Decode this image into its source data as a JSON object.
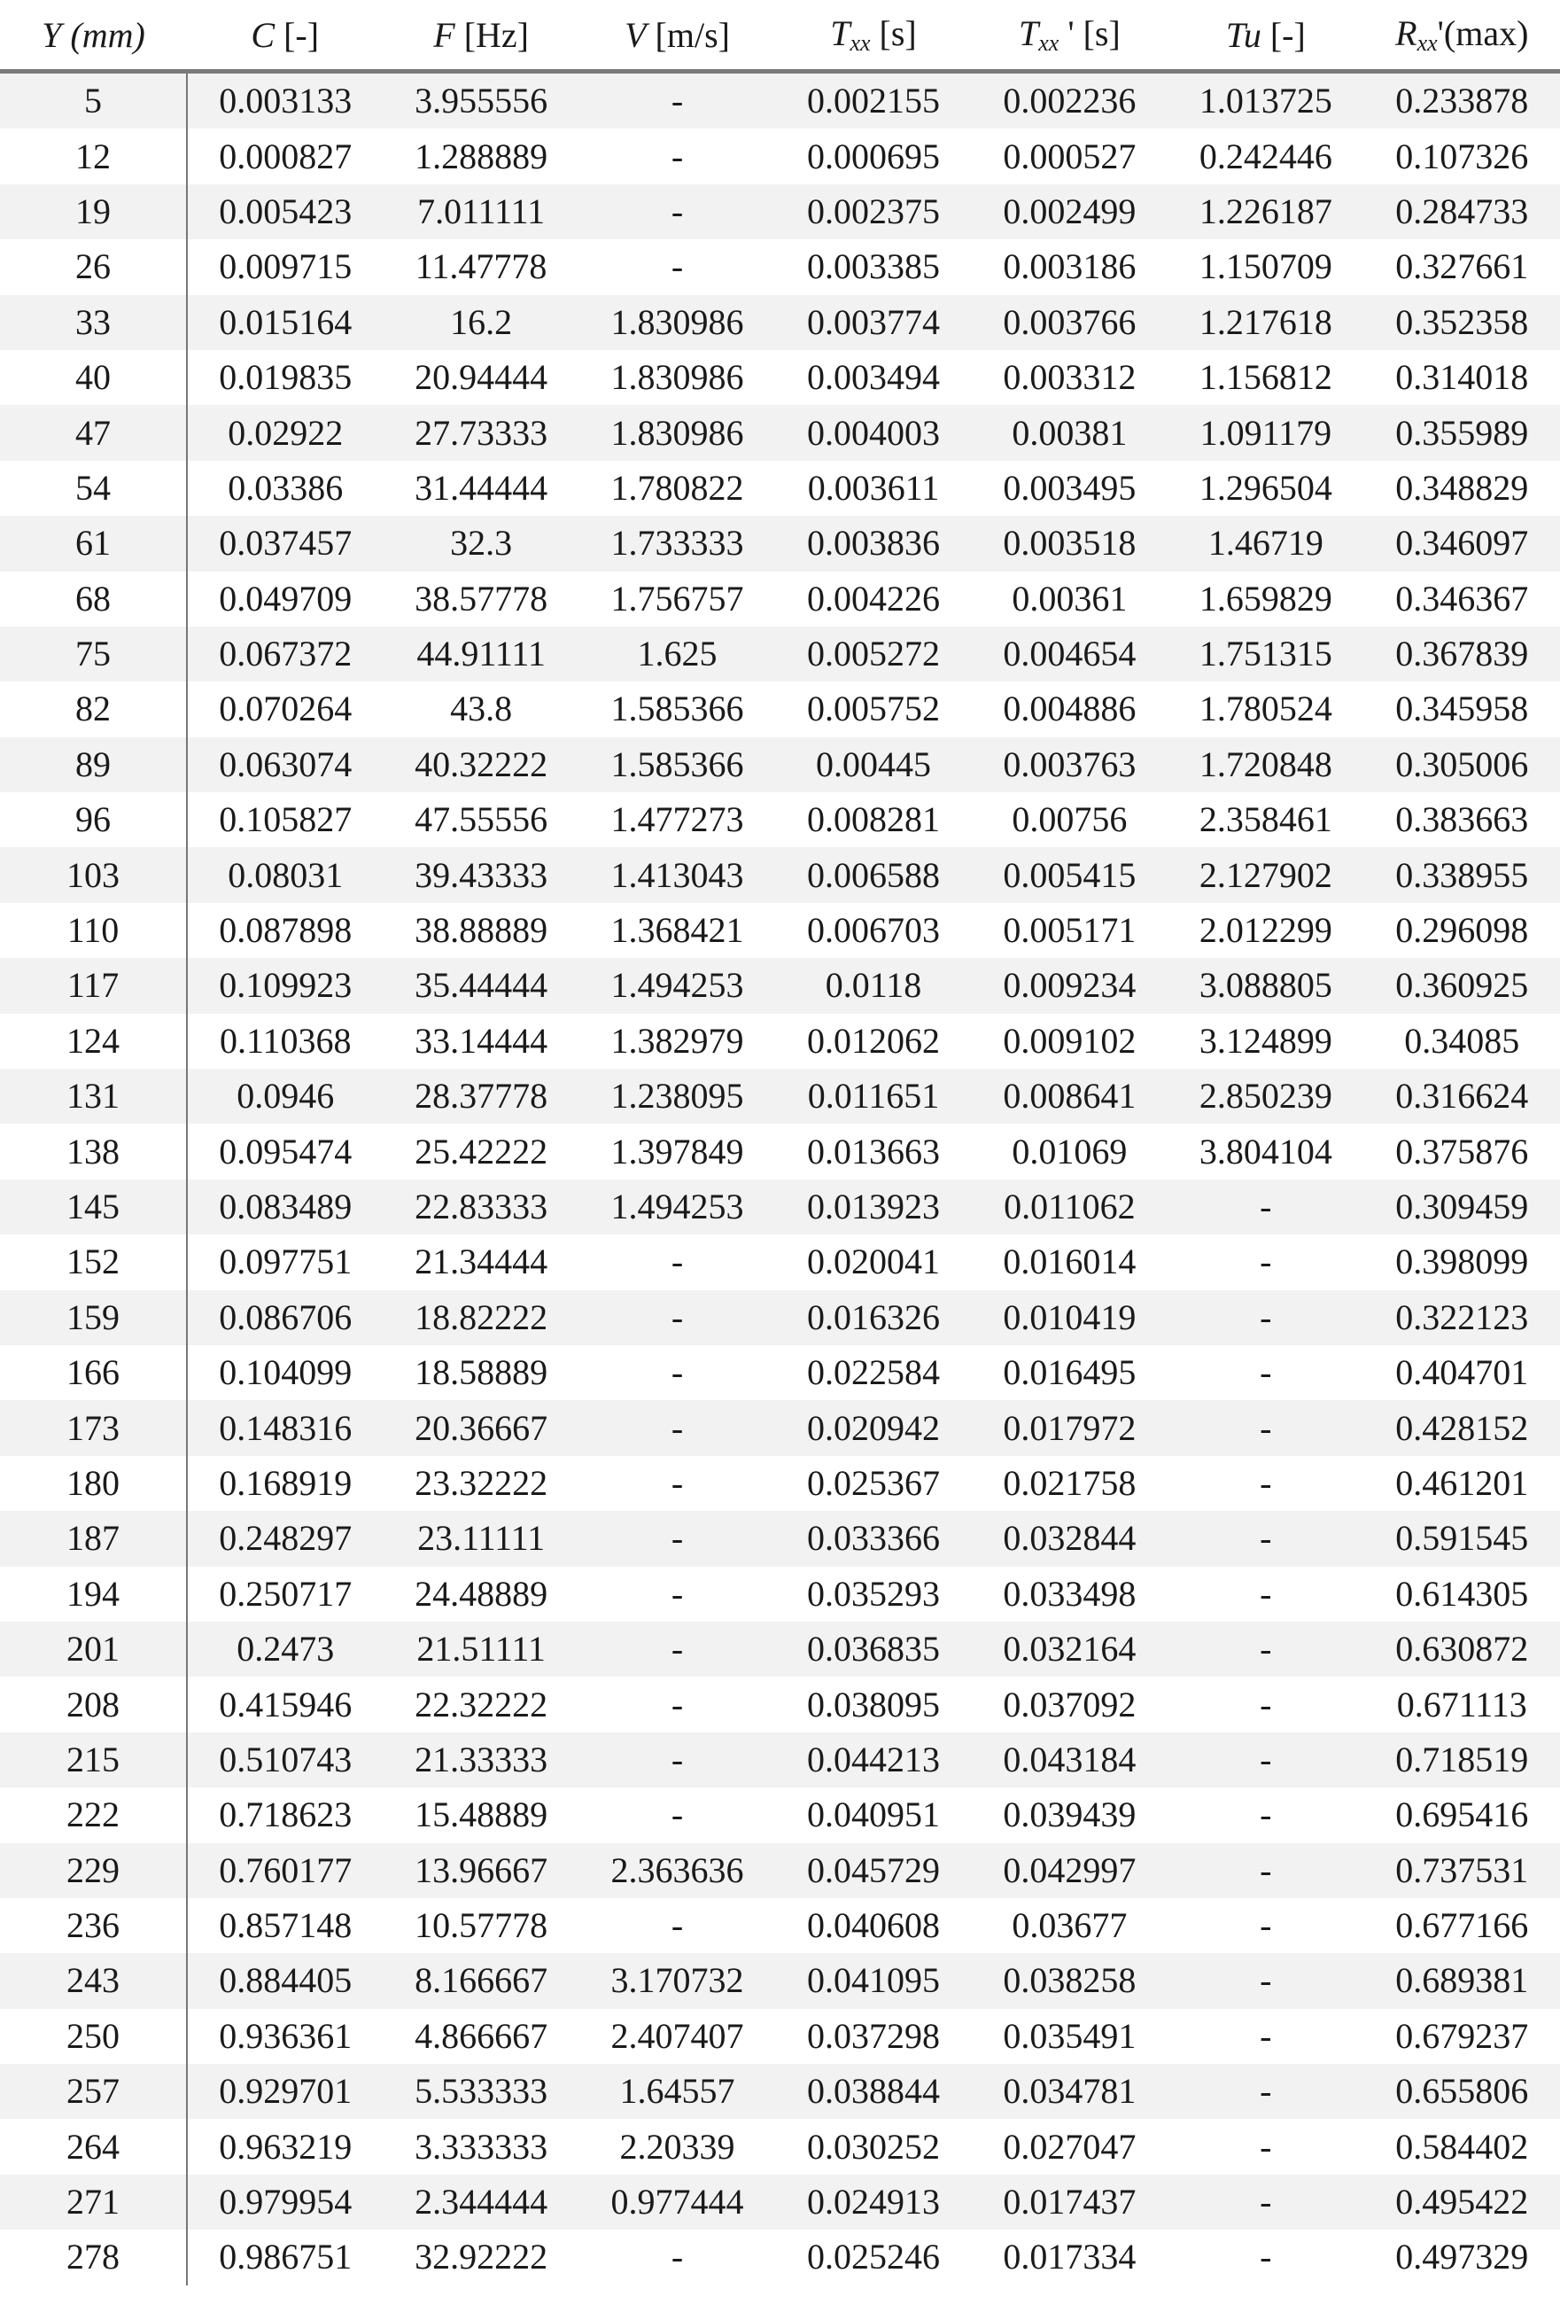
{
  "headers": [
    {
      "sym": "Y",
      "unit": " (mm)",
      "italic_unit": true
    },
    {
      "sym": "C",
      "unit": " [-]"
    },
    {
      "sym": "F",
      "unit": " [Hz]"
    },
    {
      "sym": "V",
      "unit": " [m/s]"
    },
    {
      "sym": "T",
      "sub": "xx",
      "unit": " [s]"
    },
    {
      "sym": "T",
      "sub": "xx",
      "unit": " ' [s]"
    },
    {
      "sym": "Tu",
      "unit": " [-]"
    },
    {
      "sym": "R",
      "sub": "xx",
      "unit": "'(max)"
    }
  ],
  "stripe_color": "#f2f2f2",
  "rows": [
    [
      "5",
      "0.003133",
      "3.955556",
      "-",
      "0.002155",
      "0.002236",
      "1.013725",
      "0.233878"
    ],
    [
      "12",
      "0.000827",
      "1.288889",
      "-",
      "0.000695",
      "0.000527",
      "0.242446",
      "0.107326"
    ],
    [
      "19",
      "0.005423",
      "7.011111",
      "-",
      "0.002375",
      "0.002499",
      "1.226187",
      "0.284733"
    ],
    [
      "26",
      "0.009715",
      "11.47778",
      "-",
      "0.003385",
      "0.003186",
      "1.150709",
      "0.327661"
    ],
    [
      "33",
      "0.015164",
      "16.2",
      "1.830986",
      "0.003774",
      "0.003766",
      "1.217618",
      "0.352358"
    ],
    [
      "40",
      "0.019835",
      "20.94444",
      "1.830986",
      "0.003494",
      "0.003312",
      "1.156812",
      "0.314018"
    ],
    [
      "47",
      "0.02922",
      "27.73333",
      "1.830986",
      "0.004003",
      "0.00381",
      "1.091179",
      "0.355989"
    ],
    [
      "54",
      "0.03386",
      "31.44444",
      "1.780822",
      "0.003611",
      "0.003495",
      "1.296504",
      "0.348829"
    ],
    [
      "61",
      "0.037457",
      "32.3",
      "1.733333",
      "0.003836",
      "0.003518",
      "1.46719",
      "0.346097"
    ],
    [
      "68",
      "0.049709",
      "38.57778",
      "1.756757",
      "0.004226",
      "0.00361",
      "1.659829",
      "0.346367"
    ],
    [
      "75",
      "0.067372",
      "44.91111",
      "1.625",
      "0.005272",
      "0.004654",
      "1.751315",
      "0.367839"
    ],
    [
      "82",
      "0.070264",
      "43.8",
      "1.585366",
      "0.005752",
      "0.004886",
      "1.780524",
      "0.345958"
    ],
    [
      "89",
      "0.063074",
      "40.32222",
      "1.585366",
      "0.00445",
      "0.003763",
      "1.720848",
      "0.305006"
    ],
    [
      "96",
      "0.105827",
      "47.55556",
      "1.477273",
      "0.008281",
      "0.00756",
      "2.358461",
      "0.383663"
    ],
    [
      "103",
      "0.08031",
      "39.43333",
      "1.413043",
      "0.006588",
      "0.005415",
      "2.127902",
      "0.338955"
    ],
    [
      "110",
      "0.087898",
      "38.88889",
      "1.368421",
      "0.006703",
      "0.005171",
      "2.012299",
      "0.296098"
    ],
    [
      "117",
      "0.109923",
      "35.44444",
      "1.494253",
      "0.0118",
      "0.009234",
      "3.088805",
      "0.360925"
    ],
    [
      "124",
      "0.110368",
      "33.14444",
      "1.382979",
      "0.012062",
      "0.009102",
      "3.124899",
      "0.34085"
    ],
    [
      "131",
      "0.0946",
      "28.37778",
      "1.238095",
      "0.011651",
      "0.008641",
      "2.850239",
      "0.316624"
    ],
    [
      "138",
      "0.095474",
      "25.42222",
      "1.397849",
      "0.013663",
      "0.01069",
      "3.804104",
      "0.375876"
    ],
    [
      "145",
      "0.083489",
      "22.83333",
      "1.494253",
      "0.013923",
      "0.011062",
      "-",
      "0.309459"
    ],
    [
      "152",
      "0.097751",
      "21.34444",
      "-",
      "0.020041",
      "0.016014",
      "-",
      "0.398099"
    ],
    [
      "159",
      "0.086706",
      "18.82222",
      "-",
      "0.016326",
      "0.010419",
      "-",
      "0.322123"
    ],
    [
      "166",
      "0.104099",
      "18.58889",
      "-",
      "0.022584",
      "0.016495",
      "-",
      "0.404701"
    ],
    [
      "173",
      "0.148316",
      "20.36667",
      "-",
      "0.020942",
      "0.017972",
      "-",
      "0.428152"
    ],
    [
      "180",
      "0.168919",
      "23.32222",
      "-",
      "0.025367",
      "0.021758",
      "-",
      "0.461201"
    ],
    [
      "187",
      "0.248297",
      "23.11111",
      "-",
      "0.033366",
      "0.032844",
      "-",
      "0.591545"
    ],
    [
      "194",
      "0.250717",
      "24.48889",
      "-",
      "0.035293",
      "0.033498",
      "-",
      "0.614305"
    ],
    [
      "201",
      "0.2473",
      "21.51111",
      "-",
      "0.036835",
      "0.032164",
      "-",
      "0.630872"
    ],
    [
      "208",
      "0.415946",
      "22.32222",
      "-",
      "0.038095",
      "0.037092",
      "-",
      "0.671113"
    ],
    [
      "215",
      "0.510743",
      "21.33333",
      "-",
      "0.044213",
      "0.043184",
      "-",
      "0.718519"
    ],
    [
      "222",
      "0.718623",
      "15.48889",
      "-",
      "0.040951",
      "0.039439",
      "-",
      "0.695416"
    ],
    [
      "229",
      "0.760177",
      "13.96667",
      "2.363636",
      "0.045729",
      "0.042997",
      "-",
      "0.737531"
    ],
    [
      "236",
      "0.857148",
      "10.57778",
      "-",
      "0.040608",
      "0.03677",
      "-",
      "0.677166"
    ],
    [
      "243",
      "0.884405",
      "8.166667",
      "3.170732",
      "0.041095",
      "0.038258",
      "-",
      "0.689381"
    ],
    [
      "250",
      "0.936361",
      "4.866667",
      "2.407407",
      "0.037298",
      "0.035491",
      "-",
      "0.679237"
    ],
    [
      "257",
      "0.929701",
      "5.533333",
      "1.64557",
      "0.038844",
      "0.034781",
      "-",
      "0.655806"
    ],
    [
      "264",
      "0.963219",
      "3.333333",
      "2.20339",
      "0.030252",
      "0.027047",
      "-",
      "0.584402"
    ],
    [
      "271",
      "0.979954",
      "2.344444",
      "0.977444",
      "0.024913",
      "0.017437",
      "-",
      "0.495422"
    ],
    [
      "278",
      "0.986751",
      "32.92222",
      "-",
      "0.025246",
      "0.017334",
      "-",
      "0.497329"
    ]
  ]
}
